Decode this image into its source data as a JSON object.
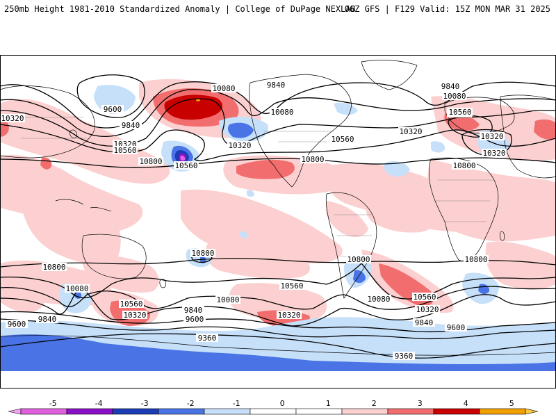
{
  "header": {
    "left_title": "250mb Height 1981-2010 Standardized Anomaly | College of DuPage NEXLAB",
    "right_title": "06Z GFS | F129 Valid: 15Z MON MAR 31 2025"
  },
  "colorbar": {
    "ticks": [
      "-5",
      "-4",
      "-3",
      "-2",
      "-1",
      "0",
      "1",
      "2",
      "3",
      "4",
      "5"
    ],
    "colors": [
      "#e060e0",
      "#8a10c8",
      "#1a3cb4",
      "#4a74e6",
      "#c6e0fa",
      "#ffffff",
      "#ffffff",
      "#fcd0d0",
      "#f26e6e",
      "#c80000",
      "#f0a000"
    ],
    "under_color": "#f4a0f4",
    "over_color": "#f8c840"
  },
  "map": {
    "contour_labels": [
      {
        "text": "10080"
      },
      {
        "text": "9840"
      },
      {
        "text": "9600"
      },
      {
        "text": "10320"
      },
      {
        "text": "10560"
      },
      {
        "text": "10800"
      },
      {
        "text": "9360"
      }
    ],
    "labels": [
      {
        "text": "9600"
      },
      {
        "text": "10320"
      },
      {
        "text": "9840"
      },
      {
        "text": "10320"
      },
      {
        "text": "10560"
      },
      {
        "text": "10800"
      },
      {
        "text": "10560"
      },
      {
        "text": "10080"
      },
      {
        "text": "9840"
      },
      {
        "text": "10320"
      },
      {
        "text": "10080"
      },
      {
        "text": "10560"
      },
      {
        "text": "10800"
      },
      {
        "text": "10320"
      },
      {
        "text": "9840"
      },
      {
        "text": "10080"
      },
      {
        "text": "10560"
      },
      {
        "text": "10320"
      },
      {
        "text": "10800"
      },
      {
        "text": "10800"
      },
      {
        "text": "10800"
      },
      {
        "text": "10080"
      },
      {
        "text": "10560"
      },
      {
        "text": "10320"
      },
      {
        "text": "9840"
      },
      {
        "text": "9600"
      },
      {
        "text": "10080"
      },
      {
        "text": "9840"
      },
      {
        "text": "9600"
      },
      {
        "text": "10320"
      },
      {
        "text": "9360"
      },
      {
        "text": "10800"
      },
      {
        "text": "10560"
      },
      {
        "text": "10080"
      },
      {
        "text": "10560"
      },
      {
        "text": "10320"
      },
      {
        "text": "9840"
      },
      {
        "text": "9600"
      },
      {
        "text": "10800"
      },
      {
        "text": "9360"
      },
      {
        "text": "10320"
      },
      {
        "text": "10560"
      }
    ]
  }
}
